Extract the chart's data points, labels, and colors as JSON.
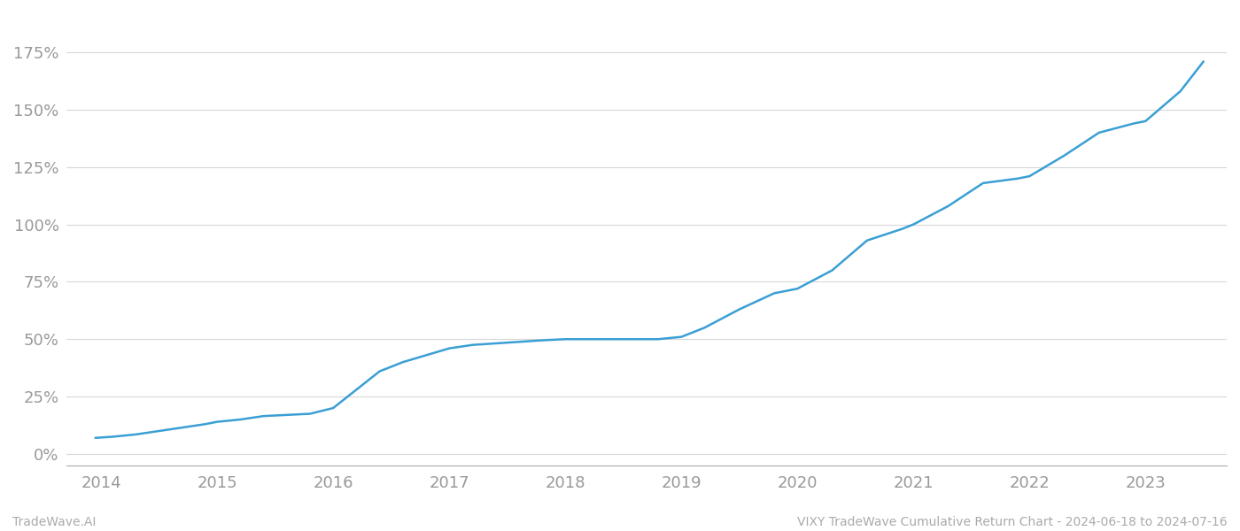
{
  "title": "VIXY TradeWave Cumulative Return Chart - 2024-06-18 to 2024-07-16",
  "watermark_left": "TradeWave.AI",
  "line_color": "#3a9fd4",
  "background_color": "#ffffff",
  "grid_color": "#d8d8d8",
  "x_years": [
    2014,
    2015,
    2016,
    2017,
    2018,
    2019,
    2020,
    2021,
    2022,
    2023
  ],
  "x_data": [
    2013.95,
    2014.1,
    2014.3,
    2014.5,
    2014.7,
    2014.9,
    2015.0,
    2015.2,
    2015.4,
    2015.6,
    2015.8,
    2016.0,
    2016.2,
    2016.4,
    2016.6,
    2016.8,
    2017.0,
    2017.2,
    2017.5,
    2017.8,
    2018.0,
    2018.2,
    2018.5,
    2018.8,
    2019.0,
    2019.2,
    2019.5,
    2019.8,
    2020.0,
    2020.3,
    2020.6,
    2020.9,
    2021.0,
    2021.3,
    2021.6,
    2021.9,
    2022.0,
    2022.3,
    2022.6,
    2022.9,
    2023.0,
    2023.3,
    2023.5
  ],
  "y_data": [
    7,
    7.5,
    8.5,
    10,
    11.5,
    13,
    14,
    15,
    16.5,
    17,
    17.5,
    20,
    28,
    36,
    40,
    43,
    46,
    47.5,
    48.5,
    49.5,
    50,
    50,
    50,
    50,
    51,
    55,
    63,
    70,
    72,
    80,
    93,
    98,
    100,
    108,
    118,
    120,
    121,
    130,
    140,
    144,
    145,
    158,
    171
  ],
  "yticks": [
    0,
    25,
    50,
    75,
    100,
    125,
    150,
    175
  ],
  "ytick_labels": [
    "0%",
    "25%",
    "50%",
    "75%",
    "100%",
    "125%",
    "150%",
    "175%"
  ],
  "ylim": [
    -5,
    192
  ],
  "xlim": [
    2013.7,
    2023.7
  ],
  "line_width": 1.8,
  "tick_fontsize": 13,
  "footer_fontsize": 10,
  "tick_color": "#999999",
  "footer_color": "#aaaaaa"
}
